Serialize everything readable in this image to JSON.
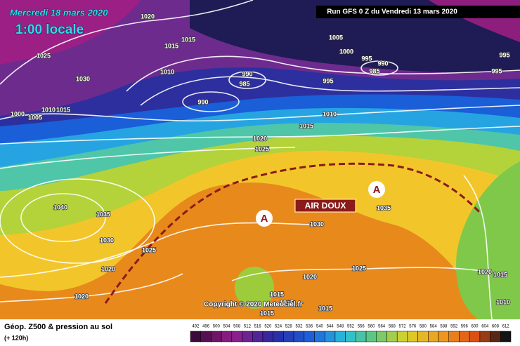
{
  "header": {
    "date": "Mercredi 18 mars 2020",
    "time": "1:00 locale",
    "run": "Run GFS 0 Z du Vendredi 13 mars 2020"
  },
  "map": {
    "annotation": "AIR DOUX",
    "highs": [
      "A",
      "A"
    ],
    "isobar_labels": [
      1020,
      1015,
      1015,
      1010,
      1025,
      1030,
      1005,
      1000,
      995,
      990,
      985,
      995,
      995,
      995,
      990,
      985,
      990,
      1000,
      1005,
      1010,
      1015,
      1010,
      1015,
      1020,
      1025,
      1040,
      1035,
      1030,
      1025,
      1020,
      1020,
      1030,
      1035,
      1025,
      1020,
      1015,
      1015,
      1015,
      1015,
      1020,
      1015,
      1010
    ],
    "copyright": "Copyright © 2020 Meteociel.fr"
  },
  "footer": {
    "title": "Géop. Z500 & pression au sol",
    "lead": "(+ 120h)",
    "scale": [
      492,
      496,
      500,
      504,
      508,
      512,
      516,
      520,
      524,
      528,
      532,
      536,
      540,
      544,
      548,
      552,
      556,
      560,
      564,
      568,
      572,
      576,
      580,
      584,
      588,
      592,
      596,
      600,
      604,
      608,
      612
    ]
  }
}
